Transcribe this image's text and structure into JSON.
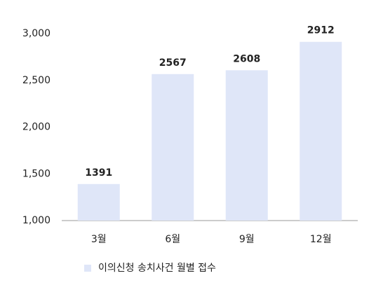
{
  "chart_data": {
    "type": "bar",
    "categories": [
      "3월",
      "6월",
      "9월",
      "12월"
    ],
    "series": [
      {
        "name": "이의신청 송치사건 월별 접수",
        "color": "#dfe6f8",
        "values": [
          1391,
          2567,
          2608,
          2912
        ]
      }
    ],
    "ylim": [
      1000,
      3000
    ],
    "yticks": [
      {
        "value": 1000,
        "label": "1,000"
      },
      {
        "value": 1500,
        "label": "1,500"
      },
      {
        "value": 2000,
        "label": "2,000"
      },
      {
        "value": 2500,
        "label": "2,500"
      },
      {
        "value": 3000,
        "label": "3,000"
      }
    ],
    "grid": false,
    "legend": "bottom"
  }
}
